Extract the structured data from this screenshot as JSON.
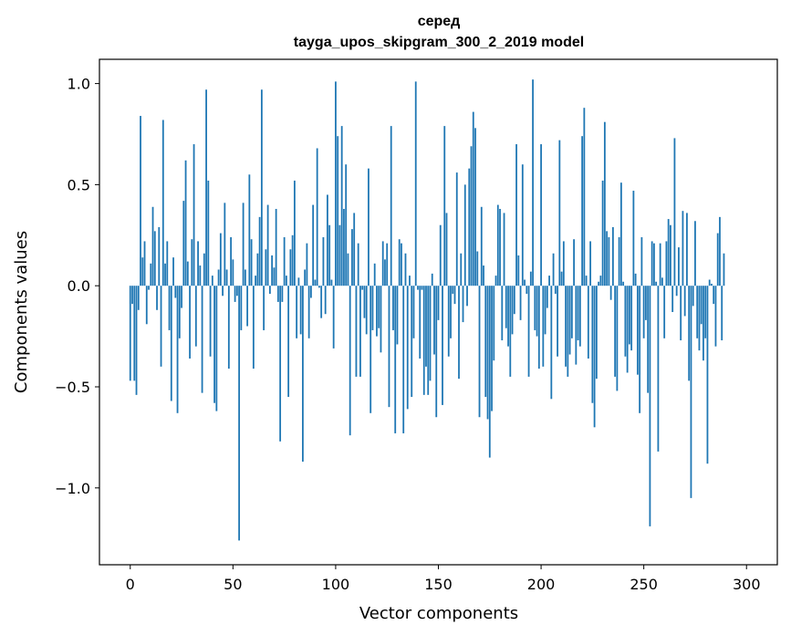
{
  "chart_data": {
    "type": "bar",
    "title_line1": "серед",
    "title_line2": "tayga_upos_skipgram_300_2_2019 model",
    "xlabel": "Vector components",
    "ylabel": "Components values",
    "xlim": [
      -15,
      315
    ],
    "ylim": [
      -1.38,
      1.12
    ],
    "xticks": [
      0,
      50,
      100,
      150,
      200,
      250,
      300
    ],
    "xtick_labels": [
      "0",
      "50",
      "100",
      "150",
      "200",
      "250",
      "300"
    ],
    "yticks": [
      1.0,
      0.5,
      0.0,
      -0.5,
      -1.0
    ],
    "ytick_labels": [
      "1.0",
      "0.5",
      "0.0",
      "−0.5",
      "−1.0"
    ],
    "bar_color": "#1f77b4",
    "grid": false,
    "values": [
      -0.47,
      -0.09,
      -0.47,
      -0.54,
      -0.12,
      0.84,
      0.14,
      0.22,
      -0.19,
      -0.02,
      0.11,
      0.39,
      0.27,
      -0.12,
      0.29,
      -0.4,
      0.82,
      0.11,
      0.22,
      -0.22,
      -0.57,
      0.14,
      -0.06,
      -0.63,
      -0.26,
      -0.11,
      0.42,
      0.62,
      0.12,
      -0.36,
      0.23,
      0.7,
      -0.3,
      0.22,
      0.1,
      -0.53,
      0.16,
      0.97,
      0.52,
      -0.35,
      0.05,
      -0.58,
      -0.62,
      0.08,
      0.26,
      -0.05,
      0.41,
      0.08,
      -0.41,
      0.24,
      0.13,
      -0.08,
      -0.05,
      -1.26,
      -0.22,
      0.41,
      0.08,
      -0.2,
      0.55,
      0.23,
      -0.41,
      0.05,
      0.16,
      0.34,
      0.97,
      -0.22,
      0.18,
      0.4,
      -0.04,
      0.15,
      0.09,
      0.38,
      -0.08,
      -0.77,
      -0.08,
      0.24,
      0.05,
      -0.55,
      0.18,
      0.25,
      0.52,
      -0.26,
      0.04,
      -0.24,
      -0.87,
      0.08,
      0.21,
      -0.26,
      -0.06,
      0.4,
      0.03,
      0.68,
      -0.01,
      -0.16,
      0.24,
      -0.14,
      0.45,
      0.3,
      0.03,
      -0.31,
      1.01,
      0.74,
      0.3,
      0.79,
      0.38,
      0.6,
      0.16,
      -0.74,
      0.28,
      0.36,
      -0.45,
      0.21,
      -0.45,
      -0.02,
      -0.16,
      -0.24,
      0.58,
      -0.63,
      -0.22,
      0.11,
      -0.25,
      -0.21,
      -0.33,
      0.22,
      0.13,
      0.21,
      -0.6,
      0.79,
      -0.22,
      -0.73,
      -0.29,
      0.23,
      0.21,
      -0.73,
      0.16,
      -0.61,
      0.05,
      -0.55,
      -0.26,
      1.01,
      -0.02,
      -0.36,
      -0.02,
      -0.54,
      -0.4,
      -0.54,
      -0.47,
      0.06,
      -0.34,
      -0.65,
      -0.17,
      0.3,
      -0.59,
      0.79,
      0.36,
      -0.35,
      -0.26,
      -0.04,
      -0.09,
      0.56,
      -0.46,
      0.16,
      -0.18,
      0.5,
      -0.1,
      0.58,
      0.69,
      0.86,
      0.78,
      0.17,
      -0.65,
      0.39,
      0.1,
      -0.55,
      -0.66,
      -0.85,
      -0.62,
      -0.37,
      0.05,
      0.4,
      0.38,
      -0.27,
      0.36,
      -0.21,
      -0.3,
      -0.45,
      -0.24,
      -0.14,
      0.7,
      0.15,
      -0.17,
      0.6,
      0.03,
      -0.04,
      -0.45,
      0.07,
      1.02,
      -0.22,
      -0.25,
      -0.41,
      0.7,
      -0.4,
      -0.24,
      -0.11,
      0.05,
      -0.56,
      0.16,
      -0.04,
      -0.35,
      0.72,
      0.07,
      0.22,
      -0.4,
      -0.45,
      -0.34,
      -0.26,
      0.23,
      -0.39,
      -0.27,
      -0.3,
      0.74,
      0.88,
      0.05,
      -0.36,
      0.22,
      -0.58,
      -0.7,
      -0.46,
      0.02,
      0.05,
      0.52,
      0.81,
      0.27,
      0.24,
      -0.07,
      0.29,
      -0.45,
      -0.52,
      0.24,
      0.51,
      0.02,
      -0.35,
      -0.43,
      -0.29,
      -0.32,
      0.47,
      0.06,
      -0.44,
      -0.63,
      0.24,
      -0.26,
      -0.17,
      -0.53,
      -1.19,
      0.22,
      0.21,
      0.02,
      -0.82,
      0.21,
      0.04,
      -0.26,
      0.22,
      0.33,
      0.3,
      -0.13,
      0.73,
      -0.05,
      0.19,
      -0.27,
      0.37,
      -0.15,
      0.36,
      -0.47,
      -1.05,
      -0.1,
      0.32,
      -0.26,
      -0.32,
      -0.19,
      -0.37,
      -0.26,
      -0.88,
      0.03,
      0.01,
      -0.09,
      -0.3,
      0.26,
      0.34,
      -0.27,
      0.16
    ]
  }
}
